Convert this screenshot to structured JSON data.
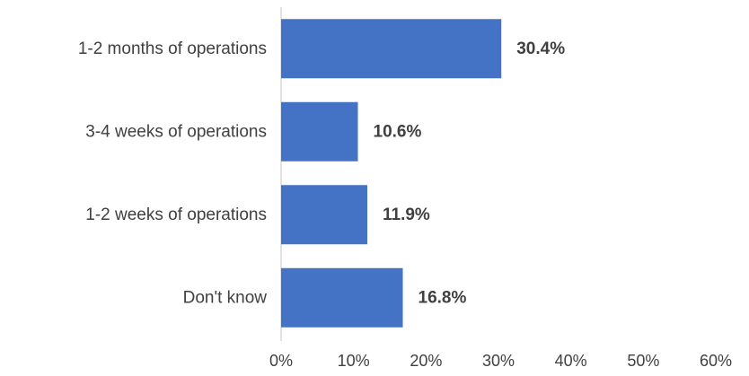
{
  "chart_data": {
    "type": "bar",
    "orientation": "horizontal",
    "categories": [
      "1-2 months of operations",
      "3-4 weeks of operations",
      "1-2 weeks of operations",
      "Don't know"
    ],
    "values": [
      30.4,
      10.6,
      11.9,
      16.8
    ],
    "data_labels": [
      "30.4%",
      "10.6%",
      "11.9%",
      "16.8%"
    ],
    "x_ticks": [
      "0%",
      "10%",
      "20%",
      "30%",
      "40%",
      "50%",
      "60%"
    ],
    "xlim": [
      0,
      60
    ],
    "grid": false,
    "legend": "none",
    "bar_color": "#4472C4"
  }
}
